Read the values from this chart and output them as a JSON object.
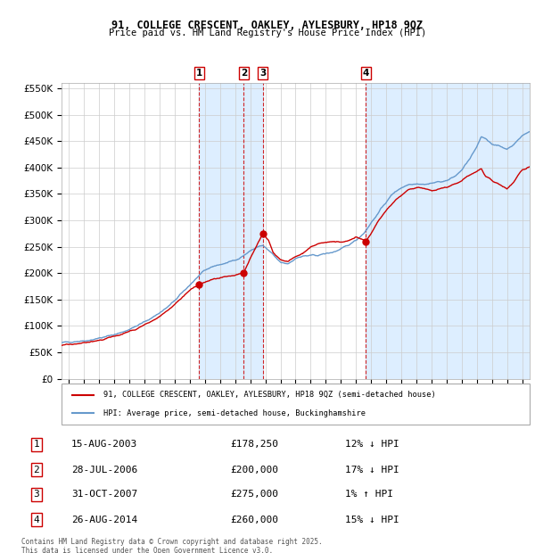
{
  "title1": "91, COLLEGE CRESCENT, OAKLEY, AYLESBURY, HP18 9QZ",
  "title2": "Price paid vs. HM Land Registry's House Price Index (HPI)",
  "legend_line1": "91, COLLEGE CRESCENT, OAKLEY, AYLESBURY, HP18 9QZ (semi-detached house)",
  "legend_line2": "HPI: Average price, semi-detached house, Buckinghamshire",
  "transactions": [
    {
      "num": 1,
      "date": "15-AUG-2003",
      "date_x": 2003.62,
      "price": 178250,
      "pct": "12%",
      "dir": "↓"
    },
    {
      "num": 2,
      "date": "28-JUL-2006",
      "date_x": 2006.57,
      "price": 200000,
      "pct": "17%",
      "dir": "↓"
    },
    {
      "num": 3,
      "date": "31-OCT-2007",
      "date_x": 2007.83,
      "price": 275000,
      "pct": "1%",
      "dir": "↑"
    },
    {
      "num": 4,
      "date": "26-AUG-2014",
      "date_x": 2014.65,
      "price": 260000,
      "pct": "15%",
      "dir": "↓"
    }
  ],
  "footer": "Contains HM Land Registry data © Crown copyright and database right 2025.\nThis data is licensed under the Open Government Licence v3.0.",
  "line_color_red": "#cc0000",
  "line_color_blue": "#6699cc",
  "shade_color": "#ddeeff",
  "vline_color": "#cc0000",
  "box_border_color": "#cc0000",
  "grid_color": "#cccccc",
  "background_chart": "#ffffff",
  "ylim": [
    0,
    560000
  ],
  "yticks": [
    0,
    50000,
    100000,
    150000,
    200000,
    250000,
    300000,
    350000,
    400000,
    450000,
    500000,
    550000
  ],
  "xlim_start": 1994.5,
  "xlim_end": 2025.5,
  "hpi_anchors": [
    [
      1994.5,
      68000
    ],
    [
      1995.0,
      70000
    ],
    [
      1995.5,
      71000
    ],
    [
      1996.0,
      72000
    ],
    [
      1996.5,
      74000
    ],
    [
      1997.0,
      77000
    ],
    [
      1997.5,
      80000
    ],
    [
      1998.0,
      84000
    ],
    [
      1998.5,
      88000
    ],
    [
      1999.0,
      94000
    ],
    [
      1999.5,
      100000
    ],
    [
      2000.0,
      108000
    ],
    [
      2000.5,
      116000
    ],
    [
      2001.0,
      125000
    ],
    [
      2001.5,
      135000
    ],
    [
      2002.0,
      148000
    ],
    [
      2002.5,
      163000
    ],
    [
      2003.0,
      178000
    ],
    [
      2003.5,
      192000
    ],
    [
      2004.0,
      205000
    ],
    [
      2004.5,
      213000
    ],
    [
      2005.0,
      216000
    ],
    [
      2005.5,
      220000
    ],
    [
      2006.0,
      225000
    ],
    [
      2006.5,
      232000
    ],
    [
      2007.0,
      242000
    ],
    [
      2007.5,
      250000
    ],
    [
      2007.83,
      252000
    ],
    [
      2008.0,
      248000
    ],
    [
      2008.5,
      235000
    ],
    [
      2009.0,
      220000
    ],
    [
      2009.5,
      218000
    ],
    [
      2010.0,
      228000
    ],
    [
      2010.5,
      232000
    ],
    [
      2011.0,
      233000
    ],
    [
      2011.5,
      234000
    ],
    [
      2012.0,
      237000
    ],
    [
      2012.5,
      240000
    ],
    [
      2013.0,
      245000
    ],
    [
      2013.5,
      253000
    ],
    [
      2014.0,
      263000
    ],
    [
      2014.5,
      275000
    ],
    [
      2015.0,
      295000
    ],
    [
      2015.5,
      315000
    ],
    [
      2016.0,
      335000
    ],
    [
      2016.5,
      352000
    ],
    [
      2017.0,
      362000
    ],
    [
      2017.5,
      368000
    ],
    [
      2018.0,
      370000
    ],
    [
      2018.5,
      368000
    ],
    [
      2019.0,
      370000
    ],
    [
      2019.5,
      373000
    ],
    [
      2020.0,
      375000
    ],
    [
      2020.5,
      382000
    ],
    [
      2021.0,
      395000
    ],
    [
      2021.5,
      415000
    ],
    [
      2022.0,
      438000
    ],
    [
      2022.3,
      458000
    ],
    [
      2022.6,
      455000
    ],
    [
      2023.0,
      445000
    ],
    [
      2023.5,
      440000
    ],
    [
      2024.0,
      435000
    ],
    [
      2024.5,
      445000
    ],
    [
      2025.0,
      460000
    ],
    [
      2025.5,
      468000
    ]
  ],
  "prop_anchors": [
    [
      1994.5,
      63000
    ],
    [
      1995.0,
      65000
    ],
    [
      1995.5,
      66500
    ],
    [
      1996.0,
      68000
    ],
    [
      1996.5,
      70000
    ],
    [
      1997.0,
      73000
    ],
    [
      1997.5,
      76500
    ],
    [
      1998.0,
      80000
    ],
    [
      1998.5,
      84000
    ],
    [
      1999.0,
      89000
    ],
    [
      1999.5,
      95000
    ],
    [
      2000.0,
      102000
    ],
    [
      2000.5,
      110000
    ],
    [
      2001.0,
      118000
    ],
    [
      2001.5,
      128000
    ],
    [
      2002.0,
      141000
    ],
    [
      2002.5,
      155000
    ],
    [
      2003.0,
      168000
    ],
    [
      2003.62,
      178250
    ],
    [
      2004.0,
      183000
    ],
    [
      2004.5,
      188000
    ],
    [
      2005.0,
      191000
    ],
    [
      2005.5,
      194000
    ],
    [
      2006.0,
      197000
    ],
    [
      2006.57,
      200000
    ],
    [
      2007.0,
      230000
    ],
    [
      2007.83,
      275000
    ],
    [
      2008.2,
      262000
    ],
    [
      2008.5,
      240000
    ],
    [
      2009.0,
      225000
    ],
    [
      2009.5,
      222000
    ],
    [
      2010.0,
      232000
    ],
    [
      2010.5,
      238000
    ],
    [
      2011.0,
      250000
    ],
    [
      2011.5,
      255000
    ],
    [
      2012.0,
      258000
    ],
    [
      2012.5,
      260000
    ],
    [
      2013.0,
      258000
    ],
    [
      2013.5,
      262000
    ],
    [
      2014.0,
      268000
    ],
    [
      2014.65,
      260000
    ],
    [
      2015.0,
      275000
    ],
    [
      2015.5,
      300000
    ],
    [
      2016.0,
      318000
    ],
    [
      2016.5,
      335000
    ],
    [
      2017.0,
      348000
    ],
    [
      2017.5,
      358000
    ],
    [
      2018.0,
      362000
    ],
    [
      2018.5,
      360000
    ],
    [
      2019.0,
      355000
    ],
    [
      2019.5,
      360000
    ],
    [
      2020.0,
      362000
    ],
    [
      2020.5,
      368000
    ],
    [
      2021.0,
      375000
    ],
    [
      2021.5,
      385000
    ],
    [
      2022.0,
      392000
    ],
    [
      2022.3,
      398000
    ],
    [
      2022.6,
      382000
    ],
    [
      2023.0,
      375000
    ],
    [
      2023.5,
      368000
    ],
    [
      2024.0,
      360000
    ],
    [
      2024.5,
      375000
    ],
    [
      2025.0,
      395000
    ],
    [
      2025.5,
      400000
    ]
  ]
}
